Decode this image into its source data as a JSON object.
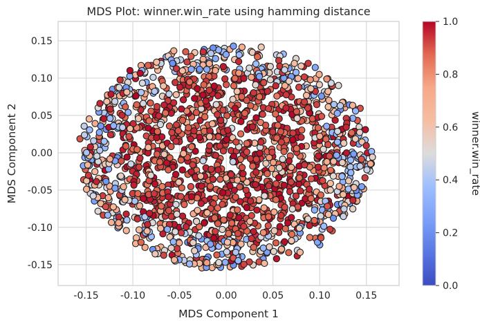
{
  "chart_data": {
    "type": "scatter",
    "title": "MDS Plot: winner.win_rate using hamming distance",
    "xlabel": "MDS Component 1",
    "ylabel": "MDS Component 2",
    "xlim": [
      -0.18,
      0.185
    ],
    "ylim": [
      -0.178,
      0.176
    ],
    "x_ticks": [
      "-0.15",
      "-0.10",
      "-0.05",
      "0.00",
      "0.05",
      "0.10",
      "0.15"
    ],
    "x_tick_values": [
      -0.15,
      -0.1,
      -0.05,
      0.0,
      0.05,
      0.1,
      0.15
    ],
    "y_ticks": [
      "-0.15",
      "-0.10",
      "-0.05",
      "0.00",
      "0.05",
      "0.10",
      "0.15"
    ],
    "y_tick_values": [
      -0.15,
      -0.1,
      -0.05,
      0.0,
      0.05,
      0.1,
      0.15
    ],
    "grid": true,
    "colormap": "coolwarm",
    "colorbar": {
      "label": "winner.win_rate",
      "range": [
        0.0,
        1.0
      ],
      "ticks": [
        "0.0",
        "0.2",
        "0.4",
        "0.6",
        "0.8",
        "1.0"
      ],
      "tick_values": [
        0.0,
        0.2,
        0.4,
        0.6,
        0.8,
        1.0
      ]
    },
    "cloud": {
      "shape": "ellipse",
      "center": [
        0.0,
        -0.005
      ],
      "x_radius": 0.16,
      "y_radius": 0.155,
      "approx_points": 1800,
      "note": "color trend: low win_rate (light/blue) at outer ring, high win_rate (dark red) concentrated in center"
    }
  }
}
